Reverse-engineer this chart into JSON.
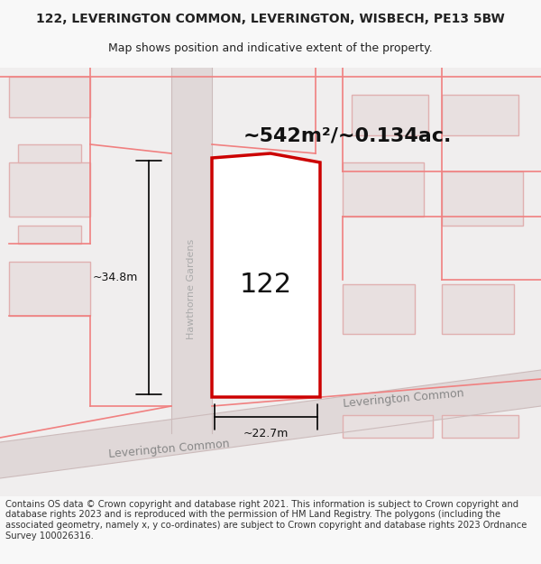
{
  "title_line1": "122, LEVERINGTON COMMON, LEVERINGTON, WISBECH, PE13 5BW",
  "title_line2": "Map shows position and indicative extent of the property.",
  "area_label": "~542m²/~0.134ac.",
  "property_number": "122",
  "dim_width": "~22.7m",
  "dim_height": "~34.8m",
  "road_label1": "Leverington Common",
  "road_label2": "Leverington Common",
  "side_road_label": "Hawthorne Gardens",
  "footer_text": "Contains OS data © Crown copyright and database right 2021. This information is subject to Crown copyright and database rights 2023 and is reproduced with the permission of HM Land Registry. The polygons (including the associated geometry, namely x, y co-ordinates) are subject to Crown copyright and database rights 2023 Ordnance Survey 100026316.",
  "bg_color": "#f5f5f5",
  "map_bg": "#f0eeee",
  "road_color": "#d8d0d0",
  "building_fill": "#d8d0d0",
  "building_outline": "#c0b8b8",
  "property_fill": "#ffffff",
  "property_outline": "#cc0000",
  "road_stripe": "#e8d8d8",
  "road_line_color": "#e0c8c8",
  "text_color": "#222222",
  "dim_line_color": "#111111",
  "title_fontsize": 10,
  "subtitle_fontsize": 9,
  "footer_fontsize": 7.5
}
